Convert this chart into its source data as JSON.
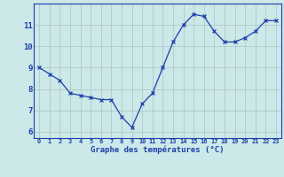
{
  "hours": [
    0,
    1,
    2,
    3,
    4,
    5,
    6,
    7,
    8,
    9,
    10,
    11,
    12,
    13,
    14,
    15,
    16,
    17,
    18,
    19,
    20,
    21,
    22,
    23
  ],
  "temperatures": [
    9.0,
    8.7,
    8.4,
    7.8,
    7.7,
    7.6,
    7.5,
    7.5,
    6.7,
    6.2,
    7.3,
    7.8,
    9.0,
    10.2,
    11.0,
    11.5,
    11.4,
    10.7,
    10.2,
    10.2,
    10.4,
    10.7,
    11.2,
    11.2
  ],
  "line_color": "#1c3faa",
  "marker_color": "#1c3faa",
  "bg_color": "#cce8e8",
  "grid_color": "#b0c8c8",
  "xlabel": "Graphe des températures (°C)",
  "xlabel_color": "#1c3faa",
  "tick_color": "#1c3faa",
  "ylim": [
    5.7,
    12.0
  ],
  "yticks": [
    6,
    7,
    8,
    9,
    10,
    11
  ],
  "xlim": [
    -0.5,
    23.5
  ],
  "xtick_labels": [
    "0",
    "1",
    "2",
    "3",
    "4",
    "5",
    "6",
    "7",
    "8",
    "9",
    "10",
    "11",
    "12",
    "13",
    "14",
    "15",
    "16",
    "17",
    "18",
    "19",
    "20",
    "21",
    "22",
    "23"
  ]
}
